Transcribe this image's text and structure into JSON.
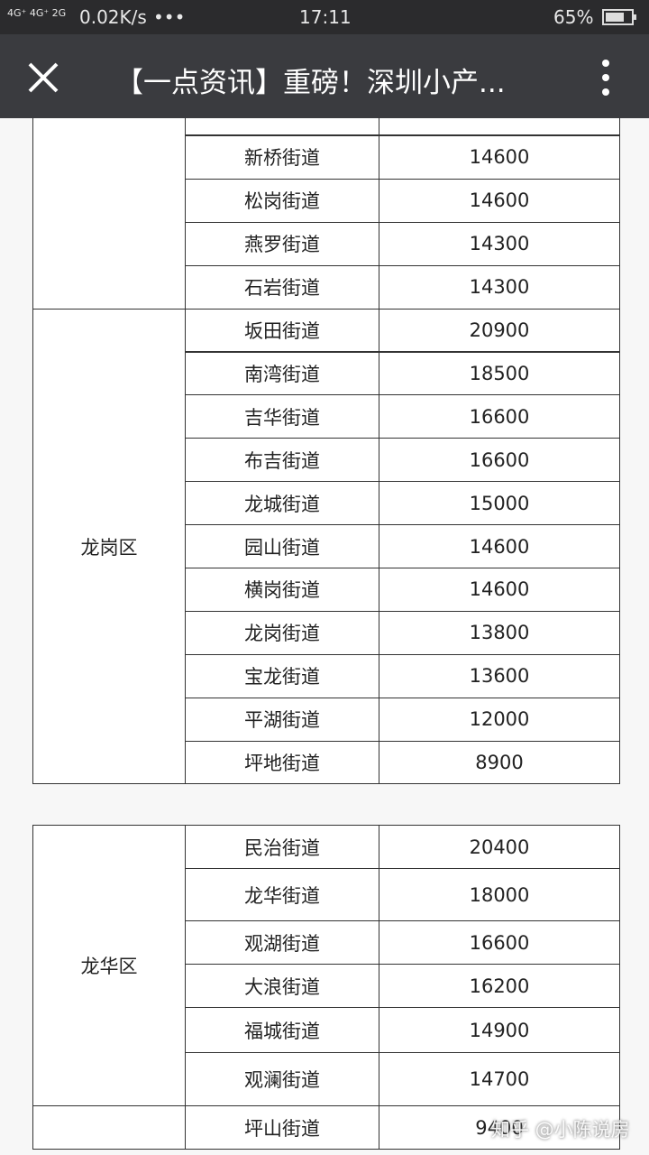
{
  "status_bar": {
    "network": "4G⁺ 4G⁺ 2G",
    "speed": "0.02K/s",
    "dots": "•••",
    "time": "17:11",
    "battery": "65%"
  },
  "header": {
    "title": "【一点资讯】重磅！深圳小产..."
  },
  "tables": [
    {
      "groups": [
        {
          "rows": [
            [
              "新桥街道",
              14600
            ],
            [
              "松岗街道",
              14600
            ],
            [
              "燕罗街道",
              14300
            ],
            [
              "石岩街道",
              14300
            ]
          ]
        },
        {
          "district": "龙岗区",
          "rows": [
            [
              "坂田街道",
              20900
            ],
            [
              "南湾街道",
              18500
            ],
            [
              "吉华街道",
              16600
            ],
            [
              "布吉街道",
              16600
            ],
            [
              "龙城街道",
              15000
            ],
            [
              "园山街道",
              14600
            ],
            [
              "横岗街道",
              14600
            ],
            [
              "龙岗街道",
              13800
            ],
            [
              "宝龙街道",
              13600
            ],
            [
              "平湖街道",
              12000
            ],
            [
              "坪地街道",
              8900
            ]
          ]
        }
      ]
    },
    {
      "groups": [
        {
          "district": "龙华区",
          "rows": [
            [
              "民治街道",
              20400
            ],
            [
              "龙华街道",
              18000
            ],
            [
              "观湖街道",
              16600
            ],
            [
              "大浪街道",
              16200
            ],
            [
              "福城街道",
              14900
            ],
            [
              "观澜街道",
              14700
            ]
          ]
        },
        {
          "rows": [
            [
              "坪山街道",
              9400
            ]
          ]
        }
      ]
    }
  ],
  "watermark": "知乎 @小陈说房"
}
